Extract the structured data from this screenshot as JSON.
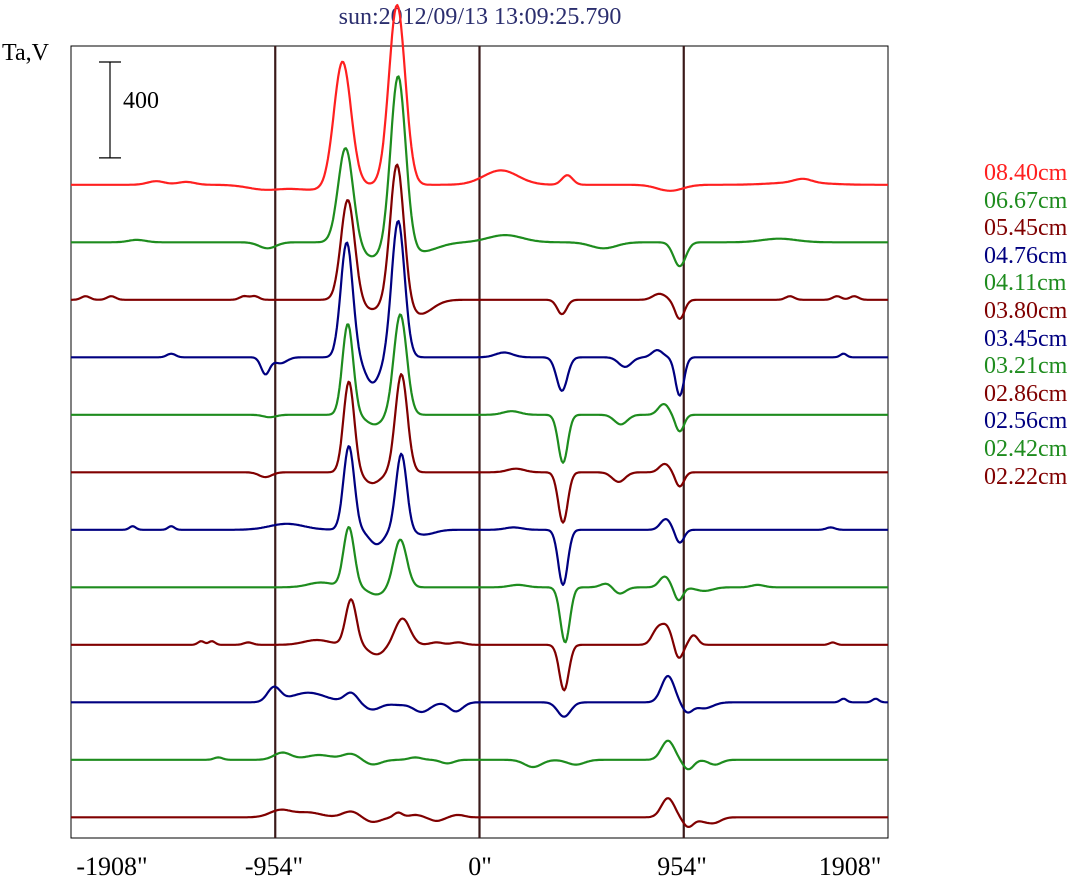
{
  "chart_data": {
    "type": "line",
    "title": "sun:2012/09/13 13:09:25.790",
    "ylabel": "Ta,V",
    "scale_bar_value": 400,
    "scale_bar_label": "400",
    "xlim": [
      -1908,
      1908
    ],
    "x_ticks": [
      -1908,
      -954,
      0,
      954,
      1908
    ],
    "x_tick_labels": [
      "-1908\"",
      "-954\"",
      "0\"",
      "954\"",
      "1908\""
    ],
    "vertical_markers": [
      -954,
      0,
      954
    ],
    "grid": false,
    "legend_position": "right",
    "colors": {
      "red": "#ff2020",
      "green": "#1e8c1e",
      "maroon": "#800000",
      "blue": "#000080",
      "frame": "#000000",
      "marker": "#3a1a1a"
    },
    "legend": [
      {
        "label": "08.40cm",
        "color": "#ff2020"
      },
      {
        "label": "06.67cm",
        "color": "#1e8c1e"
      },
      {
        "label": "05.45cm",
        "color": "#800000"
      },
      {
        "label": "04.76cm",
        "color": "#000080"
      },
      {
        "label": "04.11cm",
        "color": "#1e8c1e"
      },
      {
        "label": "03.80cm",
        "color": "#800000"
      },
      {
        "label": "03.45cm",
        "color": "#000080"
      },
      {
        "label": "03.21cm",
        "color": "#1e8c1e"
      },
      {
        "label": "02.86cm",
        "color": "#800000"
      },
      {
        "label": "02.56cm",
        "color": "#000080"
      },
      {
        "label": "02.42cm",
        "color": "#1e8c1e"
      },
      {
        "label": "02.22cm",
        "color": "#800000"
      }
    ],
    "series": [
      {
        "color": "#ff2020",
        "offset": 1950,
        "features": [
          [
            -640,
            520,
            40
          ],
          [
            -385,
            750,
            38
          ],
          [
            100,
            60,
            80
          ],
          [
            410,
            40,
            25
          ],
          [
            -1510,
            15,
            40
          ],
          [
            -1370,
            12,
            40
          ],
          [
            1510,
            15,
            40
          ],
          [
            1490,
            10,
            120
          ],
          [
            -1000,
            -20,
            80
          ],
          [
            -780,
            -20,
            90
          ],
          [
            890,
            -25,
            60
          ]
        ]
      },
      {
        "color": "#1e8c1e",
        "offset": 1710,
        "features": [
          [
            -625,
            400,
            35
          ],
          [
            -380,
            720,
            35
          ],
          [
            -500,
            -60,
            60
          ],
          [
            -280,
            -40,
            80
          ],
          [
            120,
            30,
            80
          ],
          [
            1400,
            15,
            80
          ],
          [
            -1600,
            10,
            40
          ],
          [
            935,
            -100,
            28
          ],
          [
            580,
            -25,
            60
          ],
          [
            -990,
            -25,
            40
          ]
        ]
      },
      {
        "color": "#800000",
        "offset": 1470,
        "features": [
          [
            -615,
            420,
            32
          ],
          [
            -385,
            580,
            32
          ],
          [
            -500,
            -40,
            50
          ],
          [
            -280,
            -60,
            60
          ],
          [
            385,
            -60,
            22
          ],
          [
            935,
            -80,
            22
          ],
          [
            840,
            25,
            30
          ],
          [
            -1840,
            15,
            20
          ],
          [
            -1720,
            15,
            20
          ],
          [
            -1100,
            15,
            20
          ],
          [
            -1050,
            15,
            20
          ],
          [
            1450,
            15,
            20
          ],
          [
            1670,
            15,
            20
          ],
          [
            1750,
            15,
            20
          ]
        ]
      },
      {
        "color": "#000080",
        "offset": 1230,
        "features": [
          [
            -620,
            480,
            28
          ],
          [
            -380,
            570,
            30
          ],
          [
            -510,
            -50,
            35
          ],
          [
            -490,
            -60,
            35
          ],
          [
            -1000,
            -70,
            20
          ],
          [
            -930,
            -25,
            30
          ],
          [
            385,
            -140,
            25
          ],
          [
            935,
            -160,
            20
          ],
          [
            830,
            30,
            25
          ],
          [
            680,
            -40,
            30
          ],
          [
            115,
            20,
            40
          ],
          [
            -1440,
            15,
            20
          ],
          [
            1700,
            15,
            15
          ]
        ]
      },
      {
        "color": "#1e8c1e",
        "offset": 990,
        "features": [
          [
            -615,
            380,
            25
          ],
          [
            -370,
            420,
            30
          ],
          [
            -490,
            -40,
            40
          ],
          [
            390,
            -200,
            22
          ],
          [
            935,
            -70,
            20
          ],
          [
            860,
            45,
            25
          ],
          [
            660,
            -40,
            30
          ],
          [
            150,
            15,
            40
          ],
          [
            -980,
            -10,
            30
          ]
        ]
      },
      {
        "color": "#800000",
        "offset": 750,
        "features": [
          [
            -610,
            380,
            25
          ],
          [
            -365,
            410,
            28
          ],
          [
            -500,
            -45,
            40
          ],
          [
            390,
            -210,
            22
          ],
          [
            935,
            -60,
            20
          ],
          [
            865,
            35,
            25
          ],
          [
            650,
            -40,
            30
          ],
          [
            170,
            15,
            40
          ],
          [
            -1000,
            -20,
            30
          ]
        ]
      },
      {
        "color": "#000080",
        "offset": 510,
        "features": [
          [
            -610,
            350,
            25
          ],
          [
            -365,
            320,
            25
          ],
          [
            -480,
            -60,
            35
          ],
          [
            -260,
            -20,
            50
          ],
          [
            390,
            -230,
            22
          ],
          [
            935,
            -55,
            20
          ],
          [
            870,
            45,
            25
          ],
          [
            -1620,
            15,
            15
          ],
          [
            -1440,
            15,
            15
          ],
          [
            -900,
            25,
            80
          ],
          [
            160,
            10,
            40
          ],
          [
            1640,
            10,
            20
          ]
        ]
      },
      {
        "color": "#1e8c1e",
        "offset": 270,
        "features": [
          [
            -610,
            250,
            25
          ],
          [
            -370,
            200,
            30
          ],
          [
            -740,
            20,
            60
          ],
          [
            -480,
            -30,
            40
          ],
          [
            400,
            -230,
            22
          ],
          [
            930,
            -55,
            20
          ],
          [
            865,
            45,
            25
          ],
          [
            650,
            -30,
            30
          ],
          [
            600,
            20,
            30
          ],
          [
            180,
            10,
            40
          ],
          [
            1050,
            -15,
            40
          ],
          [
            1300,
            10,
            30
          ]
        ]
      },
      {
        "color": "#800000",
        "offset": 30,
        "features": [
          [
            -600,
            190,
            25
          ],
          [
            -360,
            110,
            35
          ],
          [
            -760,
            20,
            60
          ],
          [
            -480,
            -40,
            40
          ],
          [
            395,
            -190,
            22
          ],
          [
            930,
            -60,
            20
          ],
          [
            875,
            70,
            25
          ],
          [
            830,
            60,
            25
          ],
          [
            1000,
            40,
            20
          ],
          [
            -1300,
            15,
            15
          ],
          [
            -1250,
            15,
            15
          ],
          [
            -1080,
            10,
            20
          ],
          [
            -200,
            10,
            30
          ],
          [
            -100,
            10,
            30
          ],
          [
            1650,
            10,
            15
          ]
        ]
      },
      {
        "color": "#000080",
        "offset": -210,
        "features": [
          [
            -960,
            60,
            30
          ],
          [
            -800,
            40,
            80
          ],
          [
            -600,
            40,
            30
          ],
          [
            -500,
            -30,
            40
          ],
          [
            -380,
            -10,
            40
          ],
          [
            -270,
            -40,
            40
          ],
          [
            -120,
            -20,
            30
          ],
          [
            -100,
            -20,
            30
          ],
          [
            395,
            -60,
            30
          ],
          [
            880,
            110,
            30
          ],
          [
            970,
            -40,
            25
          ],
          [
            1050,
            -25,
            40
          ],
          [
            1700,
            15,
            15
          ],
          [
            1850,
            15,
            15
          ]
        ]
      },
      {
        "color": "#1e8c1e",
        "offset": -450,
        "features": [
          [
            -920,
            30,
            40
          ],
          [
            -750,
            20,
            60
          ],
          [
            -600,
            25,
            40
          ],
          [
            -500,
            -20,
            40
          ],
          [
            -300,
            10,
            30
          ],
          [
            -150,
            -15,
            30
          ],
          [
            250,
            -30,
            40
          ],
          [
            450,
            -20,
            40
          ],
          [
            880,
            80,
            30
          ],
          [
            975,
            -40,
            25
          ],
          [
            1100,
            -20,
            30
          ],
          [
            -1220,
            10,
            20
          ]
        ]
      },
      {
        "color": "#800000",
        "offset": -690,
        "features": [
          [
            -930,
            30,
            50
          ],
          [
            -800,
            20,
            60
          ],
          [
            -600,
            25,
            40
          ],
          [
            -500,
            -20,
            40
          ],
          [
            -380,
            20,
            20
          ],
          [
            -300,
            10,
            30
          ],
          [
            -200,
            -15,
            30
          ],
          [
            -100,
            10,
            30
          ],
          [
            880,
            80,
            30
          ],
          [
            975,
            -40,
            25
          ],
          [
            1100,
            -20,
            30
          ],
          [
            1050,
            -15,
            30
          ]
        ]
      }
    ]
  }
}
